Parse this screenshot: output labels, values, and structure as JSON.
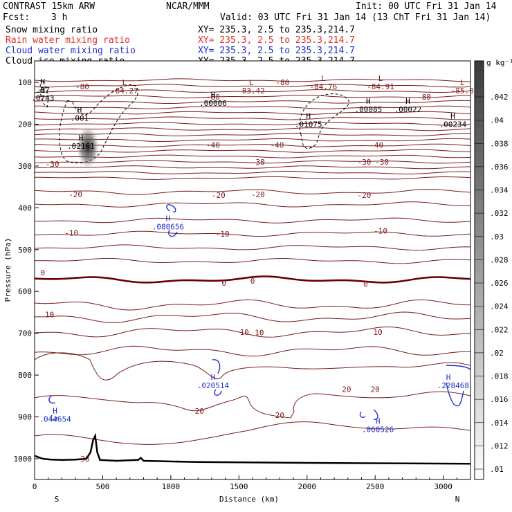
{
  "header": {
    "model": "CONTRAST 15km ARW",
    "center": "NCAR/MMM",
    "init": "Init: 00 UTC Fri 31 Jan 14",
    "fcst_label": "Fcst:",
    "fcst_value": "3 h",
    "valid": "Valid: 03 UTC Fri 31 Jan 14 (13 ChT Fri 31 Jan 14)",
    "fields": [
      {
        "name": "Snow mixing ratio",
        "xy": "XY= 235.3,  2.5 to 235.3,214.7",
        "color": "#000000"
      },
      {
        "name": "Rain water mixing ratio",
        "xy": "XY= 235.3,  2.5 to 235.3,214.7",
        "color": "#e0302a"
      },
      {
        "name": "Cloud water mixing ratio",
        "xy": "XY= 235.3,  2.5 to 235.3,214.7",
        "color": "#1f2fd0"
      },
      {
        "name": "Cloud ice mixing ratio",
        "xy": "XY= 235.3,  2.5 to 235.3,214.7",
        "color": "#000000"
      }
    ]
  },
  "colors": {
    "temp_contour": "#7a1a1a",
    "zero_contour": "#6b0000",
    "cloud_water": "#1f2fd0",
    "terrain": "#000000"
  },
  "chart_data": {
    "type": "cross-section contour",
    "xlabel": "Distance (km)",
    "ylabel": "Pressure (hPa)",
    "xlim": [
      0,
      3200
    ],
    "ylim": [
      1050,
      70
    ],
    "x_ticks": [
      0,
      500,
      1000,
      1500,
      2000,
      2500,
      3000
    ],
    "y_ticks": [
      100,
      200,
      300,
      400,
      500,
      600,
      700,
      800,
      900,
      1000
    ],
    "endpoints": {
      "left": "S",
      "right": "N"
    },
    "colorbar": {
      "unit": "g kg⁻¹",
      "ticks": [
        ".042",
        ".04",
        ".038",
        ".036",
        ".034",
        ".032",
        ".03",
        ".028",
        ".026",
        ".024",
        ".022",
        ".02",
        ".018",
        ".016",
        ".014",
        ".012",
        ".01"
      ]
    },
    "temperature_contour_labels": [
      {
        "text": "-80",
        "x": 350,
        "p": 110
      },
      {
        "text": "-80",
        "x": 1310,
        "p": 135
      },
      {
        "text": "-80",
        "x": 1820,
        "p": 100
      },
      {
        "text": "-80",
        "x": 2860,
        "p": 135
      },
      {
        "text": "-40",
        "x": 1310,
        "p": 250
      },
      {
        "text": "-40",
        "x": 1780,
        "p": 250
      },
      {
        "text": "-40",
        "x": 2510,
        "p": 250
      },
      {
        "text": "-30",
        "x": 130,
        "p": 295
      },
      {
        "text": "-30",
        "x": 1640,
        "p": 290
      },
      {
        "text": "-30",
        "x": 2420,
        "p": 290
      },
      {
        "text": "-30",
        "x": 2550,
        "p": 290
      },
      {
        "text": "-20",
        "x": 300,
        "p": 368
      },
      {
        "text": "-20",
        "x": 1350,
        "p": 370
      },
      {
        "text": "-20",
        "x": 1640,
        "p": 368
      },
      {
        "text": "-20",
        "x": 2420,
        "p": 370
      },
      {
        "text": "-10",
        "x": 270,
        "p": 460
      },
      {
        "text": "-10",
        "x": 1380,
        "p": 462
      },
      {
        "text": "-10",
        "x": 2540,
        "p": 455
      },
      {
        "text": "0",
        "x": 60,
        "p": 555
      },
      {
        "text": "0",
        "x": 1390,
        "p": 580
      },
      {
        "text": "0",
        "x": 1600,
        "p": 575
      },
      {
        "text": "0",
        "x": 2430,
        "p": 582
      },
      {
        "text": "10",
        "x": 110,
        "p": 655
      },
      {
        "text": "10",
        "x": 1540,
        "p": 697
      },
      {
        "text": "10",
        "x": 1650,
        "p": 698
      },
      {
        "text": "10",
        "x": 2520,
        "p": 697
      },
      {
        "text": "20",
        "x": 2290,
        "p": 834
      },
      {
        "text": "20",
        "x": 2500,
        "p": 834
      },
      {
        "text": "20",
        "x": 1210,
        "p": 886
      },
      {
        "text": "20",
        "x": 1800,
        "p": 896
      },
      {
        "text": "30",
        "x": 370,
        "p": 1000
      }
    ],
    "temperature_extrema": [
      {
        "type": "L",
        "value": "-84.27",
        "x": 660,
        "p": 110
      },
      {
        "type": "L",
        "value": "-83.42",
        "x": 1590,
        "p": 110
      },
      {
        "type": "L",
        "value": "-84.76",
        "x": 2120,
        "p": 100
      },
      {
        "type": "L",
        "value": "-84.91",
        "x": 2540,
        "p": 100
      },
      {
        "type": "L",
        "value": "-85.0",
        "x": 3140,
        "p": 110
      }
    ],
    "ice_extrema": [
      {
        "type": "H",
        "value": ".00006",
        "x": 1310,
        "p": 140
      },
      {
        "type": "H",
        "value": ".00085",
        "x": 2450,
        "p": 155
      },
      {
        "type": "H",
        "value": ".00022",
        "x": 2740,
        "p": 155
      },
      {
        "type": "H",
        "value": ".01075",
        "x": 2010,
        "p": 190
      },
      {
        "type": "H",
        "value": ".00234",
        "x": 3070,
        "p": 190
      },
      {
        "type": "H",
        "value": ".02161",
        "x": 340,
        "p": 242
      },
      {
        "type": "H",
        "value": ".001",
        "x": 330,
        "p": 175
      },
      {
        "type": "H",
        "value": ".0743",
        "x": 60,
        "p": 127
      },
      {
        "type": "H",
        "value": ".17",
        "x": 60,
        "p": 108
      }
    ],
    "cloud_water_extrema": [
      {
        "type": "H",
        "value": ".080656",
        "x": 980,
        "p": 435
      },
      {
        "type": "H",
        "value": ".020514",
        "x": 1310,
        "p": 815
      },
      {
        "type": "H",
        "value": ".044654",
        "x": 150,
        "p": 895
      },
      {
        "type": "H",
        "value": ".060526",
        "x": 2520,
        "p": 920
      },
      {
        "type": "H",
        "value": ".228468",
        "x": 3170,
        "p": 815
      }
    ]
  }
}
